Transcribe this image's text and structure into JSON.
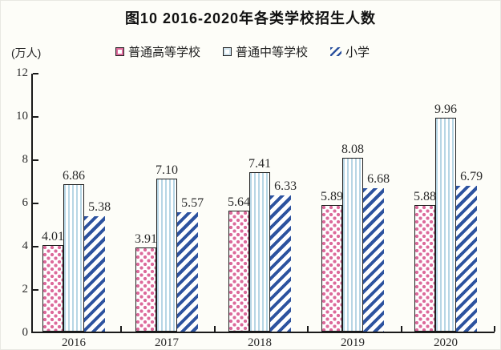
{
  "title": "图10 2016-2020年各类学校招生人数",
  "y_axis": {
    "unit": "(万人)",
    "ticks": [
      0,
      2,
      4,
      6,
      8,
      10,
      12
    ],
    "max": 12
  },
  "legend": {
    "items": [
      {
        "label": "普通高等学校",
        "swatch": "pink-diamond-pattern"
      },
      {
        "label": "普通中等学校",
        "swatch": "lightblue-vertical-stripe-pattern"
      },
      {
        "label": "小学",
        "swatch": "blue-diagonal-hatch-pattern"
      }
    ]
  },
  "chart_data": {
    "type": "bar",
    "title": "图10 2016-2020年各类学校招生人数",
    "categories": [
      "2016",
      "2017",
      "2018",
      "2019",
      "2020"
    ],
    "series": [
      {
        "name": "普通高等学校",
        "values": [
          4.01,
          3.91,
          5.64,
          5.89,
          5.88
        ]
      },
      {
        "name": "普通中等学校",
        "values": [
          6.86,
          7.1,
          7.41,
          8.08,
          9.96
        ]
      },
      {
        "name": "小学",
        "values": [
          5.38,
          5.57,
          6.33,
          6.68,
          6.79
        ]
      }
    ],
    "xlabel": "",
    "ylabel": "(万人)",
    "ylim": [
      0,
      12
    ],
    "yticks": [
      0,
      2,
      4,
      6,
      8,
      10,
      12
    ],
    "grid": false,
    "legend_position": "top",
    "value_labels_format": "0.00"
  },
  "colors": {
    "series1_pink": "#dc6a9b",
    "series2_lightblue": "#b7d6e5",
    "series3_blue": "#2d539f",
    "axis_outline": "#1a1a1a",
    "text": "#2b2b2b",
    "background": "#fdfdf8"
  }
}
